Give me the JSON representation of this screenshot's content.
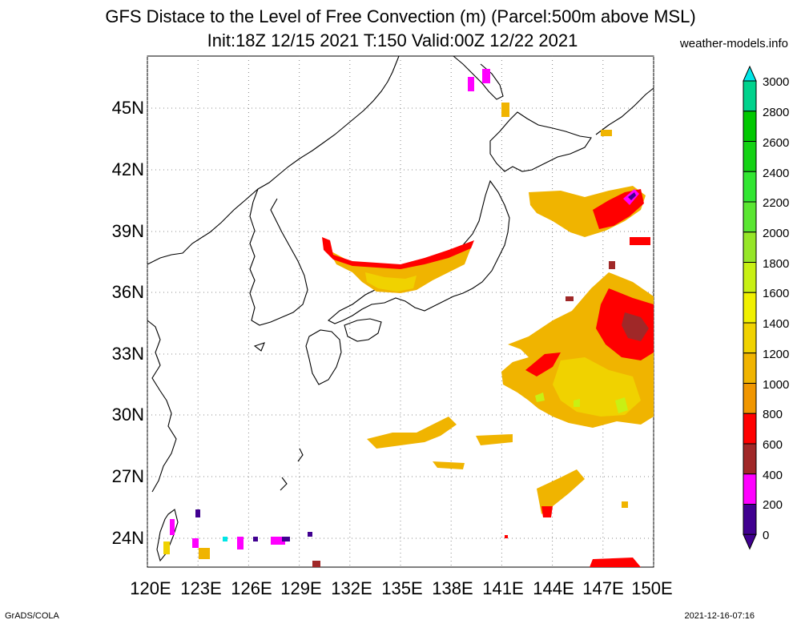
{
  "title_line1": "GFS Distace to the Level of Free Convection (m) (Parcel:500m above MSL)",
  "title_line2": "Init:18Z 12/15 2021 T:150 Valid:00Z 12/22 2021",
  "site": "weather-models.info",
  "footer_left": "GrADS/COLA",
  "footer_right": "2021-12-16-07:16",
  "lat_labels": [
    "45N",
    "42N",
    "39N",
    "36N",
    "33N",
    "30N",
    "27N",
    "24N"
  ],
  "lon_labels": [
    "120E",
    "123E",
    "126E",
    "129E",
    "132E",
    "135E",
    "138E",
    "141E",
    "144E",
    "147E",
    "150E"
  ],
  "colorbar": {
    "labels": [
      "3000",
      "2800",
      "2600",
      "2400",
      "2200",
      "2000",
      "1800",
      "1600",
      "1400",
      "1200",
      "1000",
      "800",
      "600",
      "400",
      "200",
      "0"
    ],
    "colors": [
      "#00e6e6",
      "#00d28c",
      "#00c800",
      "#14d214",
      "#32e632",
      "#5ae632",
      "#96e628",
      "#c8f014",
      "#f0f000",
      "#f0d200",
      "#f0b400",
      "#f09600",
      "#ff0000",
      "#a02828",
      "#ff00ff",
      "#400090",
      "#000000"
    ]
  }
}
